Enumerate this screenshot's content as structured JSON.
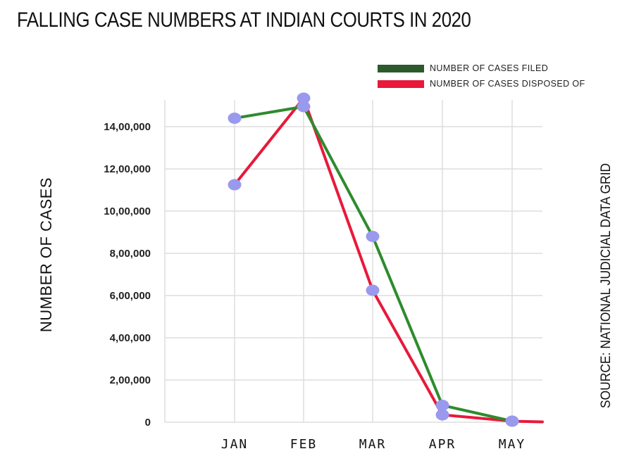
{
  "chart_data": {
    "type": "line",
    "title": "FALLING CASE NUMBERS AT INDIAN COURTS IN 2020",
    "ylabel": "NUMBER OF CASES",
    "source": "SOURCE: NATIONAL JUDICIAL DATA GRID",
    "categories": [
      "JAN",
      "FEB",
      "MAR",
      "APR",
      "MAY"
    ],
    "ylim": [
      0,
      1500000
    ],
    "y_ticks": [
      0,
      200000,
      400000,
      600000,
      800000,
      1000000,
      1200000,
      1400000
    ],
    "y_tick_labels": [
      "0",
      "2,00,000",
      "4,00,000",
      "6,00,000",
      "8,00,000",
      "10,00,000",
      "12,00,000",
      "14,00,000"
    ],
    "grid": true,
    "legend_position": "top-right",
    "series": [
      {
        "name": "NUMBER OF CASES FILED",
        "color": "#2e8b2e",
        "legend_color": "#2d5a2d",
        "values": [
          1440000,
          1495000,
          880000,
          80000,
          5000
        ]
      },
      {
        "name": "NUMBER OF CASES DISPOSED OF",
        "color": "#e8193a",
        "legend_color": "#e8193a",
        "values": [
          1125000,
          1535000,
          625000,
          35000,
          5000
        ]
      }
    ],
    "marker_color": "#9999ee"
  }
}
